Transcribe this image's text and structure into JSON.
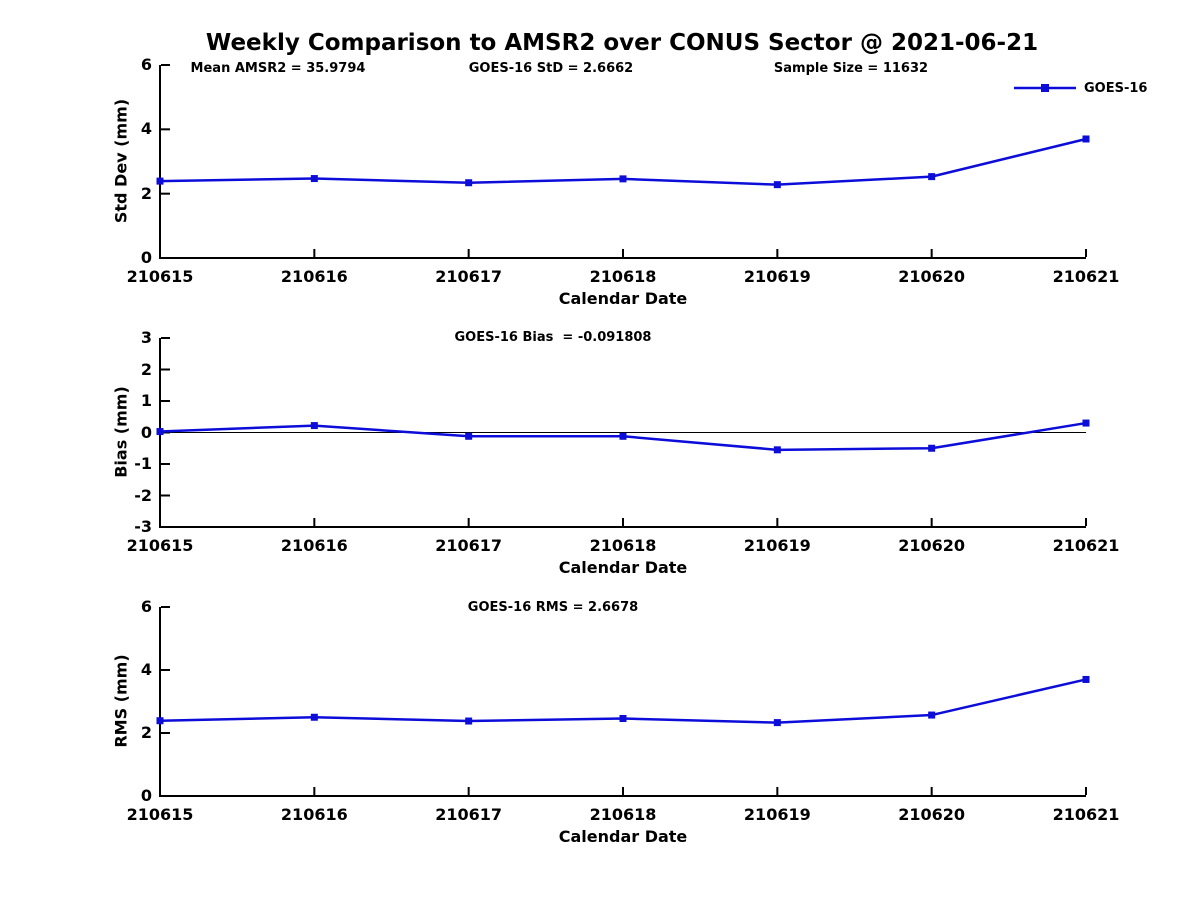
{
  "title": "Weekly Comparison to AMSR2 over CONUS Sector @ 2021-06-21",
  "legend": {
    "label": "GOES-16"
  },
  "colors": {
    "line": "#0d0dd9",
    "axis": "#000000"
  },
  "chart_data": [
    {
      "type": "line",
      "panel": "std-dev",
      "annotations": [
        "Mean AMSR2 = 35.9794",
        "GOES-16 StD = 2.6662",
        "Sample Size = 11632"
      ],
      "ylabel": "Std Dev (mm)",
      "xlabel": "Calendar Date",
      "categories": [
        "210615",
        "210616",
        "210617",
        "210618",
        "210619",
        "210620",
        "210621"
      ],
      "series": [
        {
          "name": "GOES-16",
          "values": [
            2.39,
            2.47,
            2.34,
            2.46,
            2.28,
            2.53,
            3.7
          ]
        }
      ],
      "ylim": [
        0,
        6
      ],
      "yticks": [
        0,
        2,
        4,
        6
      ],
      "grid": false,
      "zero_line": false,
      "legend_position": "top-right"
    },
    {
      "type": "line",
      "panel": "bias",
      "annotations": [
        "GOES-16 Bias  = -0.091808"
      ],
      "ylabel": "Bias (mm)",
      "xlabel": "Calendar Date",
      "categories": [
        "210615",
        "210616",
        "210617",
        "210618",
        "210619",
        "210620",
        "210621"
      ],
      "series": [
        {
          "name": "GOES-16",
          "values": [
            0.03,
            0.22,
            -0.12,
            -0.12,
            -0.55,
            -0.5,
            0.3
          ]
        }
      ],
      "ylim": [
        -3,
        3
      ],
      "yticks": [
        -3,
        -2,
        -1,
        0,
        1,
        2,
        3
      ],
      "grid": false,
      "zero_line": true,
      "legend_position": "none"
    },
    {
      "type": "line",
      "panel": "rms",
      "annotations": [
        "GOES-16 RMS = 2.6678"
      ],
      "ylabel": "RMS (mm)",
      "xlabel": "Calendar Date",
      "categories": [
        "210615",
        "210616",
        "210617",
        "210618",
        "210619",
        "210620",
        "210621"
      ],
      "series": [
        {
          "name": "GOES-16",
          "values": [
            2.39,
            2.5,
            2.38,
            2.46,
            2.33,
            2.57,
            3.7
          ]
        }
      ],
      "ylim": [
        0,
        6
      ],
      "yticks": [
        0,
        2,
        4,
        6
      ],
      "grid": false,
      "zero_line": false,
      "legend_position": "none"
    }
  ]
}
